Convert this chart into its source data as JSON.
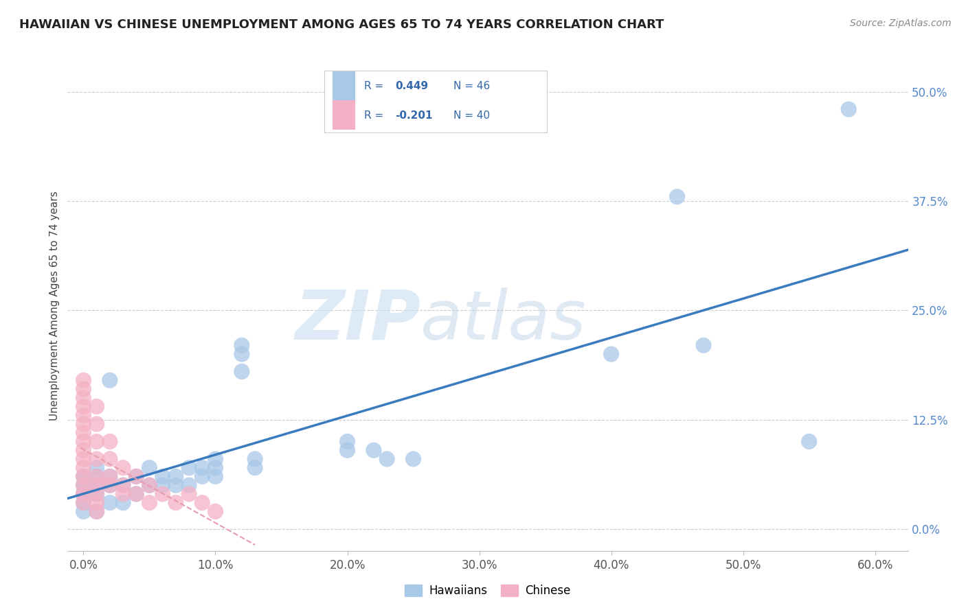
{
  "title": "HAWAIIAN VS CHINESE UNEMPLOYMENT AMONG AGES 65 TO 74 YEARS CORRELATION CHART",
  "source": "Source: ZipAtlas.com",
  "xlabel_ticks": [
    "0.0%",
    "10.0%",
    "20.0%",
    "30.0%",
    "40.0%",
    "50.0%",
    "60.0%"
  ],
  "ylabel_ticks": [
    "0.0%",
    "12.5%",
    "25.0%",
    "37.5%",
    "50.0%"
  ],
  "xlabel_tick_vals": [
    0.0,
    0.1,
    0.2,
    0.3,
    0.4,
    0.5,
    0.6
  ],
  "ylabel_tick_vals": [
    0.0,
    0.125,
    0.25,
    0.375,
    0.5
  ],
  "xlim": [
    -0.012,
    0.625
  ],
  "ylim": [
    -0.025,
    0.535
  ],
  "ylabel": "Unemployment Among Ages 65 to 74 years",
  "hawaiian_R": 0.449,
  "hawaiian_N": 46,
  "chinese_R": -0.201,
  "chinese_N": 40,
  "legend_labels": [
    "Hawaiians",
    "Chinese"
  ],
  "hawaiian_color": "#a8c8e8",
  "chinese_color": "#f4b0c4",
  "hawaiian_line_color": "#3a7abf",
  "chinese_line_color": "#e89aae",
  "watermark_zip": "ZIP",
  "watermark_atlas": "atlas",
  "hawaiian_scatter": [
    [
      0.0,
      0.02
    ],
    [
      0.0,
      0.03
    ],
    [
      0.0,
      0.04
    ],
    [
      0.0,
      0.05
    ],
    [
      0.0,
      0.06
    ],
    [
      0.01,
      0.02
    ],
    [
      0.01,
      0.04
    ],
    [
      0.01,
      0.05
    ],
    [
      0.01,
      0.06
    ],
    [
      0.01,
      0.07
    ],
    [
      0.02,
      0.03
    ],
    [
      0.02,
      0.05
    ],
    [
      0.02,
      0.06
    ],
    [
      0.03,
      0.03
    ],
    [
      0.03,
      0.05
    ],
    [
      0.04,
      0.04
    ],
    [
      0.04,
      0.06
    ],
    [
      0.05,
      0.05
    ],
    [
      0.05,
      0.07
    ],
    [
      0.06,
      0.05
    ],
    [
      0.06,
      0.06
    ],
    [
      0.07,
      0.05
    ],
    [
      0.07,
      0.06
    ],
    [
      0.08,
      0.05
    ],
    [
      0.08,
      0.07
    ],
    [
      0.09,
      0.06
    ],
    [
      0.09,
      0.07
    ],
    [
      0.1,
      0.06
    ],
    [
      0.1,
      0.07
    ],
    [
      0.1,
      0.08
    ],
    [
      0.12,
      0.2
    ],
    [
      0.12,
      0.21
    ],
    [
      0.12,
      0.18
    ],
    [
      0.13,
      0.07
    ],
    [
      0.13,
      0.08
    ],
    [
      0.02,
      0.17
    ],
    [
      0.2,
      0.1
    ],
    [
      0.2,
      0.09
    ],
    [
      0.22,
      0.09
    ],
    [
      0.23,
      0.08
    ],
    [
      0.25,
      0.08
    ],
    [
      0.4,
      0.2
    ],
    [
      0.45,
      0.38
    ],
    [
      0.47,
      0.21
    ],
    [
      0.55,
      0.1
    ],
    [
      0.58,
      0.48
    ]
  ],
  "chinese_scatter": [
    [
      0.0,
      0.17
    ],
    [
      0.0,
      0.16
    ],
    [
      0.0,
      0.15
    ],
    [
      0.0,
      0.14
    ],
    [
      0.0,
      0.13
    ],
    [
      0.0,
      0.12
    ],
    [
      0.0,
      0.11
    ],
    [
      0.0,
      0.1
    ],
    [
      0.0,
      0.09
    ],
    [
      0.0,
      0.08
    ],
    [
      0.0,
      0.07
    ],
    [
      0.0,
      0.06
    ],
    [
      0.0,
      0.05
    ],
    [
      0.0,
      0.04
    ],
    [
      0.0,
      0.03
    ],
    [
      0.01,
      0.14
    ],
    [
      0.01,
      0.12
    ],
    [
      0.01,
      0.1
    ],
    [
      0.01,
      0.08
    ],
    [
      0.01,
      0.06
    ],
    [
      0.01,
      0.05
    ],
    [
      0.01,
      0.04
    ],
    [
      0.01,
      0.03
    ],
    [
      0.01,
      0.02
    ],
    [
      0.02,
      0.1
    ],
    [
      0.02,
      0.08
    ],
    [
      0.02,
      0.06
    ],
    [
      0.02,
      0.05
    ],
    [
      0.03,
      0.07
    ],
    [
      0.03,
      0.05
    ],
    [
      0.03,
      0.04
    ],
    [
      0.04,
      0.06
    ],
    [
      0.04,
      0.04
    ],
    [
      0.05,
      0.05
    ],
    [
      0.05,
      0.03
    ],
    [
      0.06,
      0.04
    ],
    [
      0.07,
      0.03
    ],
    [
      0.08,
      0.04
    ],
    [
      0.09,
      0.03
    ],
    [
      0.1,
      0.02
    ]
  ]
}
